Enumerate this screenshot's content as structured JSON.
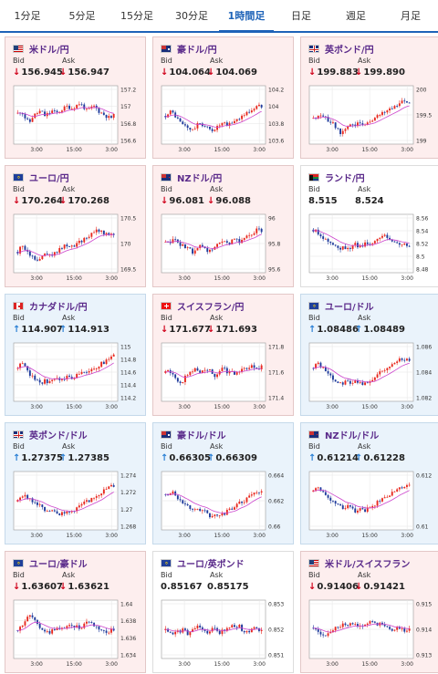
{
  "tabs": [
    {
      "label": "1分足",
      "active": false
    },
    {
      "label": "5分足",
      "active": false
    },
    {
      "label": "15分足",
      "active": false
    },
    {
      "label": "30分足",
      "active": false
    },
    {
      "label": "1時間足",
      "active": true
    },
    {
      "label": "日足",
      "active": false
    },
    {
      "label": "週足",
      "active": false
    },
    {
      "label": "月足",
      "active": false
    }
  ],
  "labels": {
    "bid": "Bid",
    "ask": "Ask"
  },
  "colors": {
    "candle_up": "#e8281e",
    "candle_down": "#1f3b9c",
    "ma": "#cc44cc",
    "down_arrow": "#d0021b",
    "up_arrow": "#2a7fd4",
    "pair_name": "#5a2a8a"
  },
  "pairs": [
    {
      "name": "米ドル/円",
      "flag": "us-flag-icon",
      "direction": "down",
      "bid": "156.945",
      "ask": "156.947",
      "y_ticks": [
        "157.2",
        "157",
        "156.8",
        "156.6"
      ],
      "x_ticks": [
        "3:00",
        "15:00",
        "3:00"
      ]
    },
    {
      "name": "豪ドル/円",
      "flag": "au-flag-icon",
      "direction": "down",
      "bid": "104.064",
      "ask": "104.069",
      "y_ticks": [
        "104.2",
        "104",
        "103.8",
        "103.6"
      ],
      "x_ticks": [
        "3:00",
        "15:00",
        "3:00"
      ]
    },
    {
      "name": "英ポンド/円",
      "flag": "gb-flag-icon",
      "direction": "down",
      "bid": "199.883",
      "ask": "199.890",
      "y_ticks": [
        "200",
        "199.5",
        "199"
      ],
      "x_ticks": [
        "3:00",
        "15:00",
        "3:00"
      ]
    },
    {
      "name": "ユーロ/円",
      "flag": "eu-flag-icon",
      "direction": "down",
      "bid": "170.264",
      "ask": "170.268",
      "y_ticks": [
        "170.5",
        "170",
        "169.5"
      ],
      "x_ticks": [
        "3:00",
        "15:00",
        "3:00"
      ]
    },
    {
      "name": "NZドル/円",
      "flag": "nz-flag-icon",
      "direction": "down",
      "bid": "96.081",
      "ask": "96.088",
      "y_ticks": [
        "96",
        "95.8",
        "95.6"
      ],
      "x_ticks": [
        "3:00",
        "15:00",
        "3:00"
      ]
    },
    {
      "name": "ランド/円",
      "flag": "za-flag-icon",
      "direction": "none",
      "bid": "8.515",
      "ask": "8.524",
      "y_ticks": [
        "8.56",
        "8.54",
        "8.52",
        "8.5",
        "8.48"
      ],
      "x_ticks": [
        "3:00",
        "15:00",
        "3:00"
      ]
    },
    {
      "name": "カナダドル/円",
      "flag": "ca-flag-icon",
      "direction": "up",
      "bid": "114.907",
      "ask": "114.913",
      "y_ticks": [
        "115",
        "114.8",
        "114.6",
        "114.4",
        "114.2"
      ],
      "x_ticks": [
        "3:00",
        "15:00",
        "3:00"
      ]
    },
    {
      "name": "スイスフラン/円",
      "flag": "ch-flag-icon",
      "direction": "down",
      "bid": "171.677",
      "ask": "171.693",
      "y_ticks": [
        "171.8",
        "171.6",
        "171.4"
      ],
      "x_ticks": [
        "3:00",
        "15:00",
        "3:00"
      ]
    },
    {
      "name": "ユーロ/ドル",
      "flag": "eu-flag-icon",
      "direction": "up",
      "bid": "1.08486",
      "ask": "1.08489",
      "y_ticks": [
        "1.086",
        "1.084",
        "1.082"
      ],
      "x_ticks": [
        "3:00",
        "15:00",
        "3:00"
      ]
    },
    {
      "name": "英ポンド/ドル",
      "flag": "gb-flag-icon",
      "direction": "up",
      "bid": "1.27375",
      "ask": "1.27385",
      "y_ticks": [
        "1.274",
        "1.272",
        "1.27",
        "1.268"
      ],
      "x_ticks": [
        "3:00",
        "15:00",
        "3:00"
      ]
    },
    {
      "name": "豪ドル/ドル",
      "flag": "au-flag-icon",
      "direction": "up",
      "bid": "0.66305",
      "ask": "0.66309",
      "y_ticks": [
        "0.664",
        "0.662",
        "0.66"
      ],
      "x_ticks": [
        "3:00",
        "15:00",
        "3:00"
      ]
    },
    {
      "name": "NZドル/ドル",
      "flag": "nz-flag-icon",
      "direction": "up",
      "bid": "0.61214",
      "ask": "0.61228",
      "y_ticks": [
        "0.612",
        "0.61"
      ],
      "x_ticks": [
        "3:00",
        "15:00",
        "3:00"
      ]
    },
    {
      "name": "ユーロ/豪ドル",
      "flag": "eu-flag-icon",
      "direction": "down",
      "bid": "1.63607",
      "ask": "1.63621",
      "y_ticks": [
        "1.64",
        "1.638",
        "1.636",
        "1.634"
      ],
      "x_ticks": [
        "3:00",
        "15:00",
        "3:00"
      ]
    },
    {
      "name": "ユーロ/英ポンド",
      "flag": "eu-flag-icon",
      "direction": "none",
      "bid": "0.85167",
      "ask": "0.85175",
      "y_ticks": [
        "0.853",
        "0.852",
        "0.851"
      ],
      "x_ticks": [
        "3:00",
        "15:00",
        "3:00"
      ]
    },
    {
      "name": "米ドル/スイスフラン",
      "flag": "us-flag-icon",
      "direction": "down",
      "bid": "0.91406",
      "ask": "0.91421",
      "y_ticks": [
        "0.915",
        "0.914",
        "0.913"
      ],
      "x_ticks": [
        "3:00",
        "15:00",
        "3:00"
      ]
    }
  ]
}
